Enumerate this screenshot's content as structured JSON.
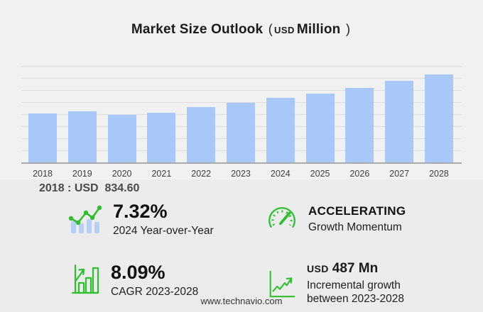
{
  "title": {
    "main": "Market Size Outlook",
    "paren_open": "(",
    "unit_small": "USD",
    "unit_big": "Million",
    "paren_close": ")"
  },
  "chart_data": {
    "type": "bar",
    "title": "Market Size Outlook (USD Million)",
    "categories": [
      "2018",
      "2019",
      "2020",
      "2021",
      "2022",
      "2023",
      "2024",
      "2025",
      "2026",
      "2027",
      "2028"
    ],
    "values": [
      834.6,
      870,
      818,
      855,
      945,
      1024,
      1099,
      1180,
      1270,
      1390,
      1511
    ],
    "unit": "USD Million",
    "xlabel": "",
    "ylabel": "",
    "ylim": [
      0,
      1650
    ],
    "grid": true,
    "legend": false,
    "gridline_count": 8,
    "annotations": [
      "2018 : USD  834.60"
    ]
  },
  "annotation_2018": "2018 : USD  834.60",
  "stats": {
    "yoy": {
      "icon": "bars-trend-icon",
      "value": "7.32%",
      "label": "2024 Year-over-Year"
    },
    "momentum": {
      "icon": "gauge-icon",
      "value": "ACCELERATING",
      "label": "Growth Momentum"
    },
    "cagr": {
      "icon": "bar-growth-icon",
      "value": "8.09%",
      "label": "CAGR 2023-2028"
    },
    "incremental": {
      "icon": "line-growth-icon",
      "value_prefix": "USD",
      "value": "487 Mn",
      "label": "Incremental growth between 2023-2028"
    }
  },
  "footer": {
    "url": "www.technavio.com"
  },
  "colors": {
    "bar": "#a7c8f9",
    "icon_bar": "#b6cff7",
    "green": "#2fbf2f",
    "background": "#f1f1f2",
    "gridline": "#dcdcdf",
    "axis": "#ababae"
  }
}
